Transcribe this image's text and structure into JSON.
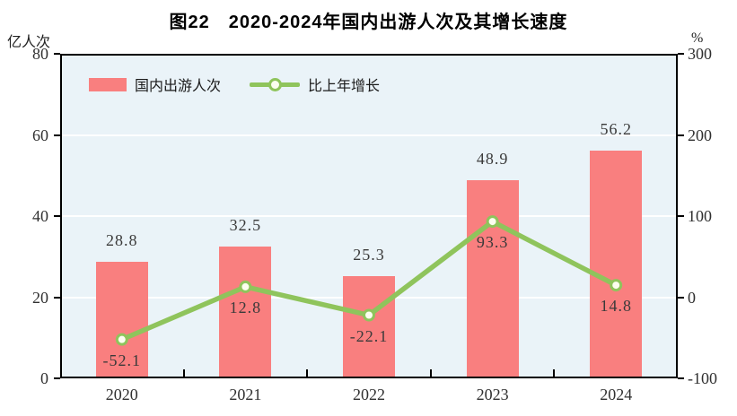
{
  "title": "图22　2020-2024年国内出游人次及其增长速度",
  "left_axis": {
    "unit": "亿人次",
    "ticks": [
      80,
      60,
      40,
      20,
      0
    ]
  },
  "right_axis": {
    "unit": "%",
    "ticks": [
      300,
      200,
      100,
      0,
      -100
    ]
  },
  "legend": {
    "bar_label": "国内出游人次",
    "line_label": "比上年增长"
  },
  "colors": {
    "bar": "#F97F7F",
    "line": "#8FC45C",
    "marker_fill": "#FCFEF0",
    "plot_bg": "#EAF3F8",
    "gridline": "#FFFFFF",
    "axis": "#000000",
    "label_text": "#3a3a3a"
  },
  "chart_data": {
    "type": "bar+line combo",
    "title": "图22　2020-2024年国内出游人次及其增长速度",
    "categories": [
      "2020",
      "2021",
      "2022",
      "2023",
      "2024"
    ],
    "series": [
      {
        "name": "国内出游人次",
        "type": "bar",
        "axis": "left",
        "unit": "亿人次",
        "values": [
          28.8,
          32.5,
          25.3,
          48.9,
          56.2
        ]
      },
      {
        "name": "比上年增长",
        "type": "line",
        "axis": "right",
        "unit": "%",
        "values": [
          -52.1,
          12.8,
          -22.1,
          93.3,
          14.8
        ]
      }
    ],
    "left_ylabel": "亿人次",
    "right_ylabel": "%",
    "left_ylim": [
      0,
      80
    ],
    "right_ylim": [
      -100,
      300
    ],
    "grid": true,
    "legend_position": "top-left-inside"
  }
}
